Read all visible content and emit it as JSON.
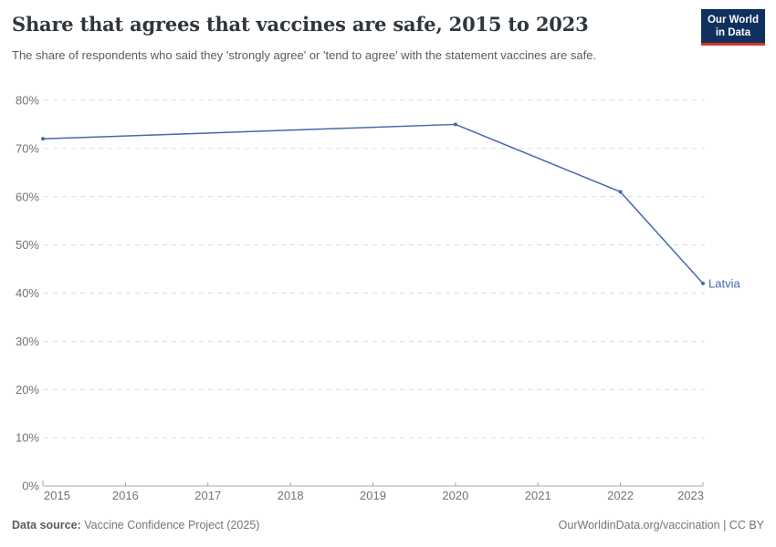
{
  "header": {
    "title": "Share that agrees that vaccines are safe, 2015 to 2023",
    "subtitle": "The share of respondents who said they 'strongly agree' or 'tend to agree' with the statement vaccines are safe.",
    "logo": {
      "line1": "Our World",
      "line2": "in Data",
      "bg_color": "#103060",
      "accent_color": "#d8352a"
    }
  },
  "chart_data": {
    "type": "line",
    "title": "Share that agrees that vaccines are safe, 2015 to 2023",
    "unit": "%",
    "xlim": [
      2015,
      2023
    ],
    "ylim": [
      0,
      80
    ],
    "x_ticks": [
      2015,
      2016,
      2017,
      2018,
      2019,
      2020,
      2021,
      2022,
      2023
    ],
    "y_ticks": [
      0,
      10,
      20,
      30,
      40,
      50,
      60,
      70,
      80
    ],
    "grid": "horizontal-dashed",
    "legend_position": "line-end-label",
    "colors": {
      "grid": "#dcdcdc",
      "axis": "#a8a8a8",
      "tick_text": "#737373"
    },
    "series": [
      {
        "name": "Latvia",
        "color": "#4568a8",
        "points": [
          {
            "year": 2015,
            "value": 72
          },
          {
            "year": 2020,
            "value": 75
          },
          {
            "year": 2022,
            "value": 61
          },
          {
            "year": 2023,
            "value": 42
          }
        ]
      }
    ]
  },
  "footer": {
    "datasource_label": "Data source:",
    "datasource_value": "Vaccine Confidence Project (2025)",
    "link": "OurWorldinData.org/vaccination",
    "separator": " | ",
    "license": "CC BY"
  }
}
